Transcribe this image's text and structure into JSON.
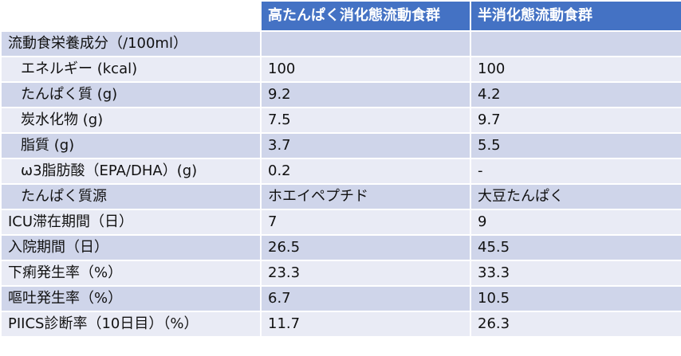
{
  "table": {
    "headers": [
      "",
      "高たんぱく消化態流動食群",
      "半消化態流動食群"
    ],
    "rows": [
      {
        "label": "流動食栄養成分（/100ml）",
        "indent": false,
        "a": "",
        "b": ""
      },
      {
        "label": "エネルギー (kcal)",
        "indent": true,
        "a": "100",
        "b": "100"
      },
      {
        "label": "たんぱく質 (g)",
        "indent": true,
        "a": "9.2",
        "b": "4.2"
      },
      {
        "label": "炭水化物 (g)",
        "indent": true,
        "a": "7.5",
        "b": "9.7"
      },
      {
        "label": "脂質 (g)",
        "indent": true,
        "a": "3.7",
        "b": "5.5"
      },
      {
        "label": "ω3脂肪酸（EPA/DHA）(g)",
        "indent": true,
        "a": "0.2",
        "b": "-"
      },
      {
        "label": "たんぱく質源",
        "indent": true,
        "a": "ホエイペプチド",
        "b": "大豆たんぱく"
      },
      {
        "label": "ICU滞在期間（日）",
        "indent": false,
        "a": "7",
        "b": "9"
      },
      {
        "label": "入院期間（日）",
        "indent": false,
        "a": "26.5",
        "b": "45.5"
      },
      {
        "label": "下痢発生率（%）",
        "indent": false,
        "a": "23.3",
        "b": "33.3"
      },
      {
        "label": "嘔吐発生率（%）",
        "indent": false,
        "a": "6.7",
        "b": "10.5"
      },
      {
        "label": "PIICS診断率（10日目）（%）",
        "indent": false,
        "a": "11.7",
        "b": "26.3"
      }
    ]
  },
  "colors": {
    "header": "#4472c4",
    "row_dark": "#cfd5ea",
    "row_light": "#e9ebf5"
  }
}
